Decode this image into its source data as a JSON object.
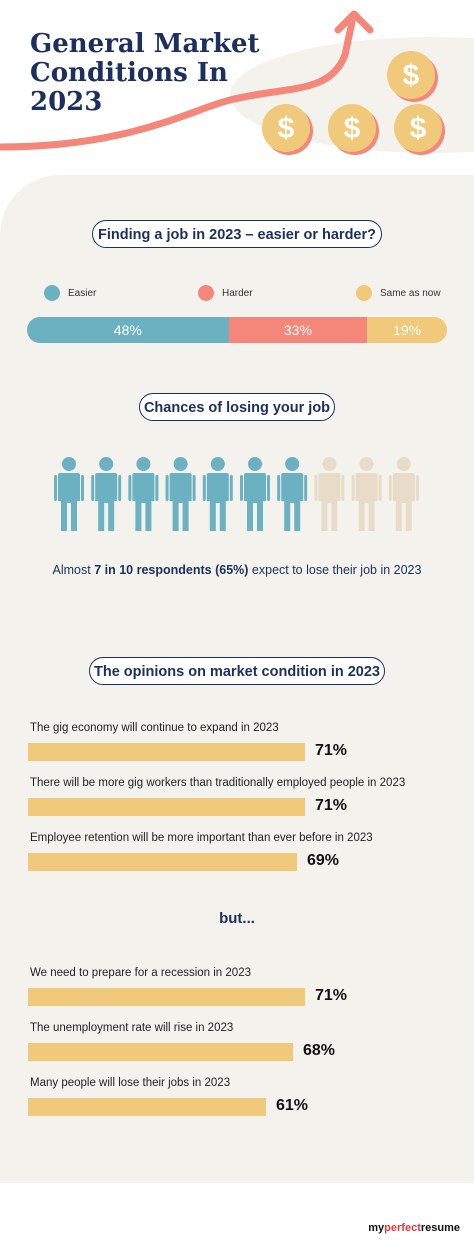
{
  "title": "General Market Conditions In 2023",
  "section1": {
    "heading": "Finding a job in 2023 – easier or harder?",
    "legend": [
      {
        "label": "Easier",
        "color": "#6cb1c1"
      },
      {
        "label": "Harder",
        "color": "#f4867a"
      },
      {
        "label": "Same as now",
        "color": "#f0c97a"
      }
    ],
    "segments": [
      {
        "label": "48%",
        "value": 48,
        "color": "#6cb1c1"
      },
      {
        "label": "33%",
        "value": 33,
        "color": "#f4867a"
      },
      {
        "label": "19%",
        "value": 19,
        "color": "#f0c97a"
      }
    ]
  },
  "section2": {
    "heading": "Chances of losing your job",
    "filled": 7,
    "total": 10,
    "filled_color": "#6cb1c1",
    "empty_color": "#e8dcc8",
    "note_pre": "Almost ",
    "note_bold": "7 in 10 respondents (65%)",
    "note_post": " expect to lose their job in 2023"
  },
  "section3": {
    "heading": "The opinions on market condition in 2023",
    "but": "but...",
    "bar_color": "#f0c97a"
  },
  "chart_data": [
    {
      "type": "bar",
      "title": "Finding a job in 2023 – easier or harder?",
      "categories": [
        "Easier",
        "Harder",
        "Same as now"
      ],
      "values": [
        48,
        33,
        19
      ]
    },
    {
      "type": "bar",
      "title": "The opinions on market condition in 2023",
      "categories": [
        "The gig economy will continue to expand in 2023",
        "There will be more gig workers than traditionally employed people in 2023",
        "Employee retention will be more important than ever before in 2023",
        "We need to prepare for a recession in 2023",
        "The unemployment rate will rise in 2023",
        "Many people will lose their jobs in 2023"
      ],
      "values": [
        71,
        71,
        69,
        71,
        68,
        61
      ],
      "value_labels": [
        "71%",
        "71%",
        "69%",
        "71%",
        "68%",
        "61%"
      ],
      "xlim": [
        0,
        100
      ]
    }
  ],
  "brand": {
    "pre": "my",
    "mid": "perfect",
    "post": "resume"
  }
}
